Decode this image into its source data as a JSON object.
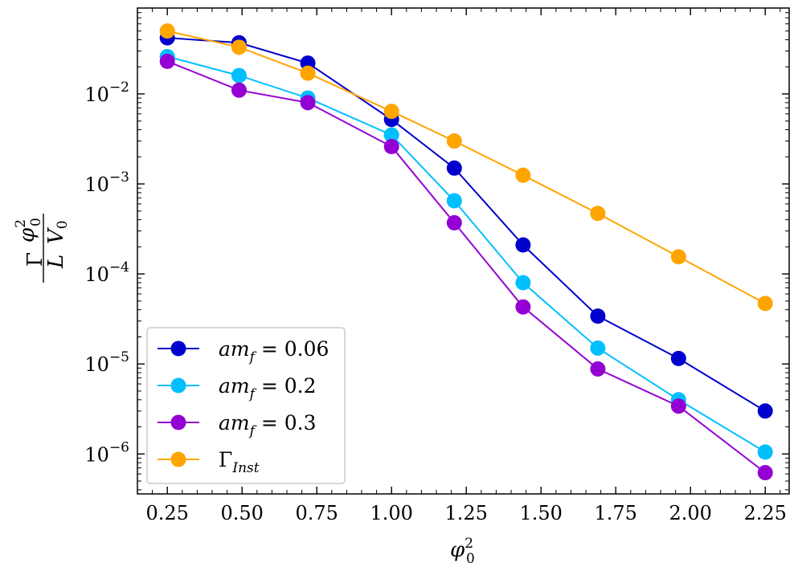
{
  "chart_data": {
    "type": "line",
    "title": "",
    "xlabel": "φ0^2",
    "ylabel": "Γ φ0^2 / (L V0)",
    "yscale": "log",
    "xlim": [
      0.15,
      2.33
    ],
    "ylim": [
      3.6e-07,
      0.09
    ],
    "x": [
      0.25,
      0.49,
      0.72,
      1.0,
      1.21,
      1.44,
      1.69,
      1.96,
      2.25
    ],
    "xticks": [
      "0.25",
      "0.50",
      "0.75",
      "1.00",
      "1.25",
      "1.50",
      "1.75",
      "2.00",
      "2.25"
    ],
    "yticks": [
      {
        "base": "10",
        "exp": "−2",
        "value": 0.01
      },
      {
        "base": "10",
        "exp": "−3",
        "value": 0.001
      },
      {
        "base": "10",
        "exp": "−4",
        "value": 0.0001
      },
      {
        "base": "10",
        "exp": "−5",
        "value": 1e-05
      },
      {
        "base": "10",
        "exp": "−6",
        "value": 1e-06
      }
    ],
    "legend_position": "lower-left",
    "series": [
      {
        "name": "amf = 0.06",
        "legend_main": "am",
        "legend_sub": "f",
        "legend_rest": " = 0.06",
        "color": "#0000cc",
        "values": [
          0.042,
          0.037,
          0.022,
          0.0052,
          0.0015,
          0.00021,
          3.4e-05,
          1.15e-05,
          3e-06
        ]
      },
      {
        "name": "amf = 0.2",
        "legend_main": "am",
        "legend_sub": "f",
        "legend_rest": " = 0.2",
        "color": "#00bfff",
        "values": [
          0.026,
          0.016,
          0.009,
          0.0035,
          0.00065,
          8e-05,
          1.5e-05,
          4e-06,
          1.05e-06
        ]
      },
      {
        "name": "amf = 0.3",
        "legend_main": "am",
        "legend_sub": "f",
        "legend_rest": " = 0.3",
        "color": "#9400d3",
        "values": [
          0.023,
          0.011,
          0.008,
          0.0026,
          0.00037,
          4.3e-05,
          8.8e-06,
          3.4e-06,
          6.2e-07
        ]
      },
      {
        "name": "ΓInst",
        "legend_main": "Γ",
        "legend_sub": "Inst",
        "legend_rest": "",
        "color": "#ffa500",
        "values": [
          0.05,
          0.033,
          0.017,
          0.0064,
          0.003,
          0.00125,
          0.00047,
          0.000155,
          4.7e-05
        ]
      }
    ]
  }
}
